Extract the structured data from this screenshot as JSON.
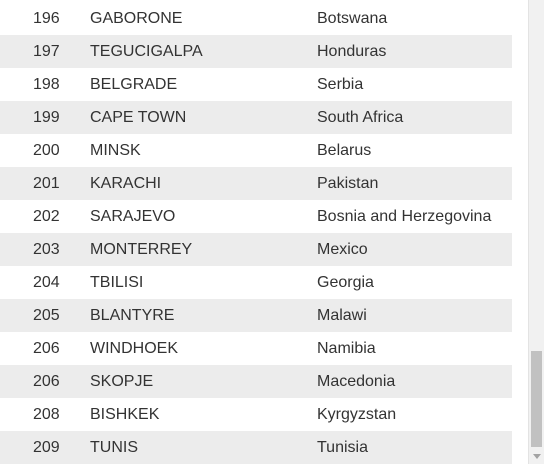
{
  "table": {
    "rows": [
      {
        "rank": "196",
        "city": "GABORONE",
        "country": "Botswana"
      },
      {
        "rank": "197",
        "city": "TEGUCIGALPA",
        "country": "Honduras"
      },
      {
        "rank": "198",
        "city": "BELGRADE",
        "country": "Serbia"
      },
      {
        "rank": "199",
        "city": "CAPE TOWN",
        "country": "South Africa"
      },
      {
        "rank": "200",
        "city": "MINSK",
        "country": "Belarus"
      },
      {
        "rank": "201",
        "city": "KARACHI",
        "country": "Pakistan"
      },
      {
        "rank": "202",
        "city": "SARAJEVO",
        "country": "Bosnia and Herzegovina"
      },
      {
        "rank": "203",
        "city": "MONTERREY",
        "country": "Mexico"
      },
      {
        "rank": "204",
        "city": "TBILISI",
        "country": "Georgia"
      },
      {
        "rank": "205",
        "city": "BLANTYRE",
        "country": "Malawi"
      },
      {
        "rank": "206",
        "city": "WINDHOEK",
        "country": "Namibia"
      },
      {
        "rank": "206",
        "city": "SKOPJE",
        "country": "Macedonia"
      },
      {
        "rank": "208",
        "city": "BISHKEK",
        "country": "Kyrgyzstan"
      },
      {
        "rank": "209",
        "city": "TUNIS",
        "country": "Tunisia"
      }
    ]
  },
  "scrollbar": {
    "down_arrow_icon": "chevron-down-icon"
  }
}
